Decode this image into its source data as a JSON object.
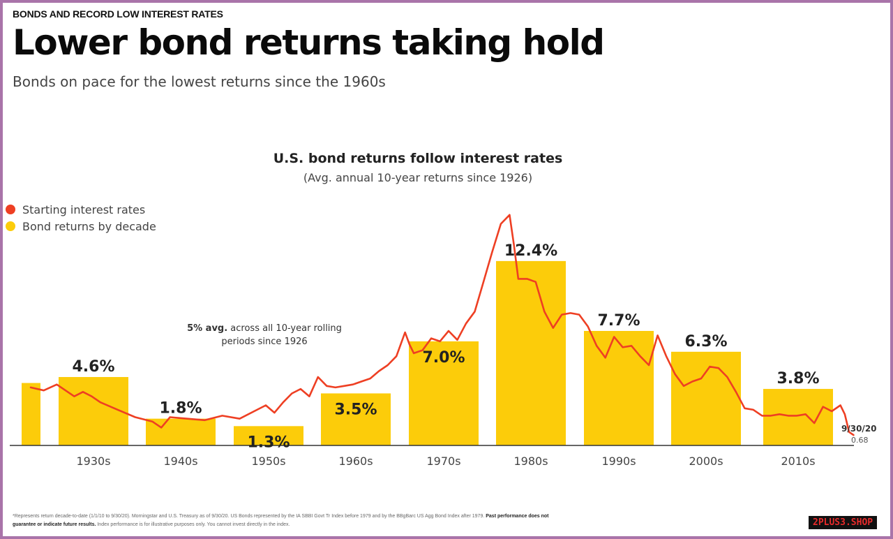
{
  "header": {
    "kicker": "BONDS AND RECORD LOW INTEREST RATES",
    "title": "Lower bond returns taking hold",
    "subtitle": "Bonds on pace for the lowest returns since the 1960s"
  },
  "chart_data": {
    "type": "bar",
    "title": "U.S. bond returns follow interest rates",
    "subtitle": "(Avg. annual 10-year returns since 1926)",
    "categories": [
      "1930s",
      "1940s",
      "1950s",
      "1960s",
      "1970s",
      "1980s",
      "1990s",
      "2000s",
      "2010s"
    ],
    "series": [
      {
        "name": "Bond returns by decade",
        "color": "#FCCC0A",
        "values": [
          4.6,
          1.8,
          1.3,
          3.5,
          7.0,
          12.4,
          7.7,
          6.3,
          3.8
        ],
        "labels": [
          "4.6%",
          "1.8%",
          "1.3%",
          "3.5%",
          "7.0%",
          "12.4%",
          "7.7%",
          "6.3%",
          "3.8%"
        ],
        "partial_1920s_value": 4.2
      },
      {
        "name": "Starting interest rates",
        "type": "line",
        "color": "#EE3F23",
        "x": [
          1926,
          1927.5,
          1929,
          1930,
          1931,
          1932,
          1933,
          1934,
          1936,
          1938,
          1940,
          1941,
          1942,
          1944,
          1946,
          1948,
          1950,
          1952,
          1953,
          1954,
          1955,
          1956,
          1957,
          1958,
          1959,
          1960,
          1961,
          1962,
          1963,
          1964,
          1965,
          1966,
          1967,
          1968,
          1969,
          1969.5,
          1970,
          1971,
          1972,
          1973,
          1974,
          1975,
          1976,
          1977,
          1978,
          1979,
          1980,
          1981,
          1981.5,
          1982,
          1983,
          1984,
          1985,
          1986,
          1987,
          1988,
          1989,
          1990,
          1991,
          1992,
          1993,
          1994,
          1995,
          1996,
          1997,
          1998,
          1999,
          2000,
          2001,
          2002,
          2003,
          2004,
          2005,
          2006,
          2007,
          2008,
          2009,
          2010,
          2011,
          2012,
          2013,
          2014,
          2015,
          2016,
          2017,
          2018,
          2019,
          2019.5,
          2020,
          2020.5
        ],
        "y": [
          3.9,
          3.7,
          4.1,
          3.7,
          3.3,
          3.6,
          3.3,
          2.9,
          2.4,
          1.9,
          1.6,
          1.2,
          1.9,
          1.8,
          1.7,
          2.0,
          1.8,
          2.4,
          2.7,
          2.2,
          2.9,
          3.5,
          3.8,
          3.3,
          4.6,
          4.0,
          3.9,
          4.0,
          4.1,
          4.3,
          4.5,
          5.0,
          5.4,
          6.0,
          7.6,
          6.8,
          6.2,
          6.4,
          7.2,
          7.0,
          7.7,
          7.1,
          8.2,
          9.0,
          11.0,
          13.0,
          14.9,
          15.5,
          13.5,
          11.2,
          11.2,
          11.0,
          9.0,
          7.9,
          8.8,
          8.9,
          8.8,
          8.0,
          6.7,
          5.9,
          7.3,
          6.6,
          6.7,
          6.0,
          5.4,
          7.4,
          6.0,
          4.8,
          4.0,
          4.3,
          4.5,
          5.3,
          5.2,
          4.6,
          3.6,
          2.5,
          2.4,
          2.0,
          2.0,
          2.1,
          2.0,
          2.0,
          2.1,
          1.5,
          2.6,
          2.3,
          2.7,
          2.1,
          0.9,
          0.7
        ]
      }
    ],
    "end_label": "9/30/20",
    "end_value": "0.68",
    "annotation_bold": "5% avg.",
    "annotation_rest": " across all 10-year rolling periods since 1926",
    "ylim": [
      0,
      16
    ]
  },
  "legend": [
    {
      "label": "Starting interest rates",
      "color": "#EE3F23"
    },
    {
      "label": "Bond returns by decade",
      "color": "#FCCC0A"
    }
  ],
  "footnote": {
    "line1": "*Represents return decade-to-date (1/1/10 to 9/30/20).  Morningstar and U.S. Treasury as of 9/30/20. US Bonds represented by the IA SBBI Govt Tr Index before 1979 and by the BBgBarc US Agg Bond Index after 1979.",
    "line1_bold": " Past performance does not",
    "line2_bold": "guarantee or indicate future results.",
    "line2": " Index performance is for illustrative purposes only. You cannot invest directly in the index."
  },
  "watermark": "2PLUS3.SHOP"
}
